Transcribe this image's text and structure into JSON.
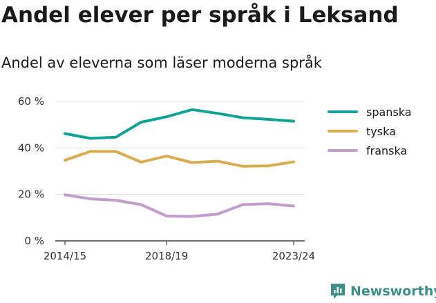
{
  "chart_data": {
    "type": "line",
    "title": "Andel elever per språk i Leksand",
    "subtitle": "Andel av eleverna som läser moderna språk",
    "xlabel": "",
    "ylabel": "",
    "x": [
      "2014/15",
      "2015/16",
      "2016/17",
      "2017/18",
      "2018/19",
      "2019/20",
      "2020/21",
      "2021/22",
      "2022/23",
      "2023/24"
    ],
    "x_tick_labels": [
      "2014/15",
      "2018/19",
      "2023/24"
    ],
    "ylim": [
      0,
      60
    ],
    "y_ticks": [
      0,
      20,
      40,
      60
    ],
    "y_tick_labels": [
      "0 %",
      "20 %",
      "40 %",
      "60 %"
    ],
    "grid": true,
    "legend_position": "right",
    "series": [
      {
        "name": "spanska",
        "color": "#13a396",
        "values": [
          46.2,
          44.1,
          44.6,
          51.1,
          53.4,
          56.5,
          54.9,
          53.0,
          52.3,
          51.5
        ]
      },
      {
        "name": "tyska",
        "color": "#d9ae52",
        "values": [
          34.7,
          38.5,
          38.5,
          33.9,
          36.5,
          33.7,
          34.3,
          32.1,
          32.3,
          34.0
        ]
      },
      {
        "name": "franska",
        "color": "#c39dcc",
        "values": [
          19.8,
          18.1,
          17.5,
          15.6,
          10.7,
          10.5,
          11.5,
          15.6,
          16.0,
          15.0
        ]
      }
    ]
  },
  "brand": {
    "label": "Newsworthy",
    "icon": "newsworthy-logo-icon",
    "color": "#3f8f89"
  }
}
